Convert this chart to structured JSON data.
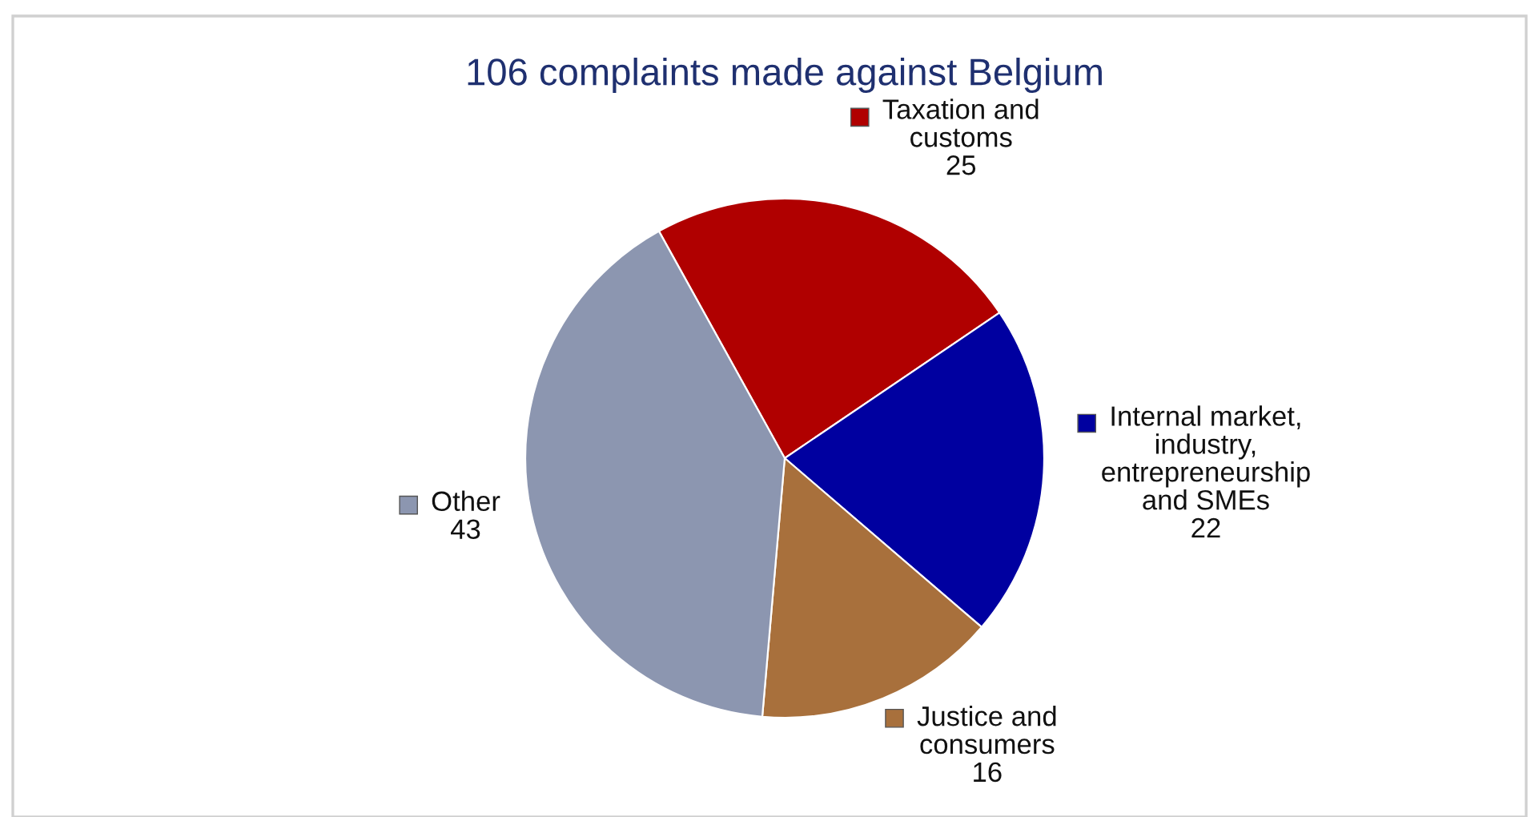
{
  "chart_data": {
    "type": "pie",
    "title": "106 complaints made against Belgium",
    "categories": [
      "Taxation and\ncustoms",
      "Internal market,\nindustry,\nentrepreneurship\nand SMEs",
      "Justice and\nconsumers",
      "Other"
    ],
    "values": [
      25,
      22,
      16,
      43
    ],
    "colors": [
      "#b00000",
      "#0000a0",
      "#a8703c",
      "#8c96b0"
    ],
    "data_labels": true,
    "legend": "right"
  }
}
